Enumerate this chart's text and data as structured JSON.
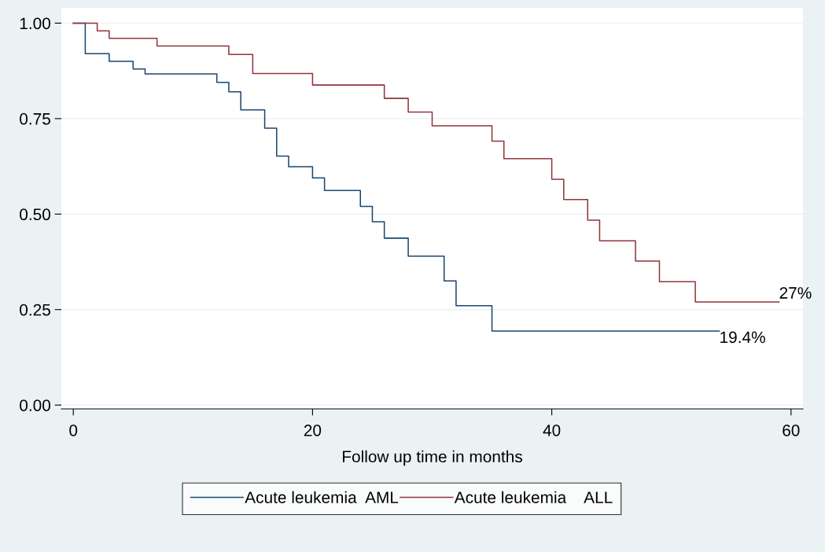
{
  "chart_data": {
    "type": "step",
    "xlabel": "Follow up time in months",
    "xlim": [
      -1,
      61
    ],
    "xticks": [
      0,
      20,
      40,
      60
    ],
    "ylim": [
      -0.01,
      1.04
    ],
    "yticks": [
      {
        "value": 0,
        "label": "0.00"
      },
      {
        "value": 0.25,
        "label": "0.25"
      },
      {
        "value": 0.5,
        "label": "0.50"
      },
      {
        "value": 0.75,
        "label": "0.75"
      },
      {
        "value": 1,
        "label": "1.00"
      }
    ],
    "grid": "y",
    "legend": "bottom",
    "line_style": "solid",
    "marker": "none",
    "series": [
      {
        "name": "Acute leukemia  AML",
        "color": "#1a476f",
        "x": [
          0,
          1,
          3,
          5,
          6,
          12,
          13,
          14,
          16,
          17,
          18,
          20,
          21,
          24,
          25,
          26,
          28,
          31,
          32,
          35,
          54
        ],
        "values": [
          1,
          0.92,
          0.9,
          0.88,
          0.867,
          0.845,
          0.82,
          0.773,
          0.725,
          0.652,
          0.624,
          0.595,
          0.562,
          0.52,
          0.48,
          0.437,
          0.39,
          0.325,
          0.26,
          0.194,
          0.194
        ]
      },
      {
        "name": "Acute leukemia    ALL",
        "color": "#90353b",
        "x": [
          0,
          2,
          3,
          7,
          13,
          15,
          20,
          26,
          28,
          30,
          35,
          36,
          40,
          41,
          43,
          44,
          47,
          49,
          52,
          59
        ],
        "values": [
          1,
          0.98,
          0.96,
          0.94,
          0.918,
          0.868,
          0.838,
          0.803,
          0.767,
          0.731,
          0.691,
          0.645,
          0.591,
          0.538,
          0.484,
          0.43,
          0.377,
          0.323,
          0.27,
          0.27
        ]
      }
    ],
    "annotations": [
      {
        "text": "27%",
        "x": 59,
        "y": 0.27
      },
      {
        "text": "19.4%",
        "x": 54,
        "y": 0.194
      }
    ]
  }
}
